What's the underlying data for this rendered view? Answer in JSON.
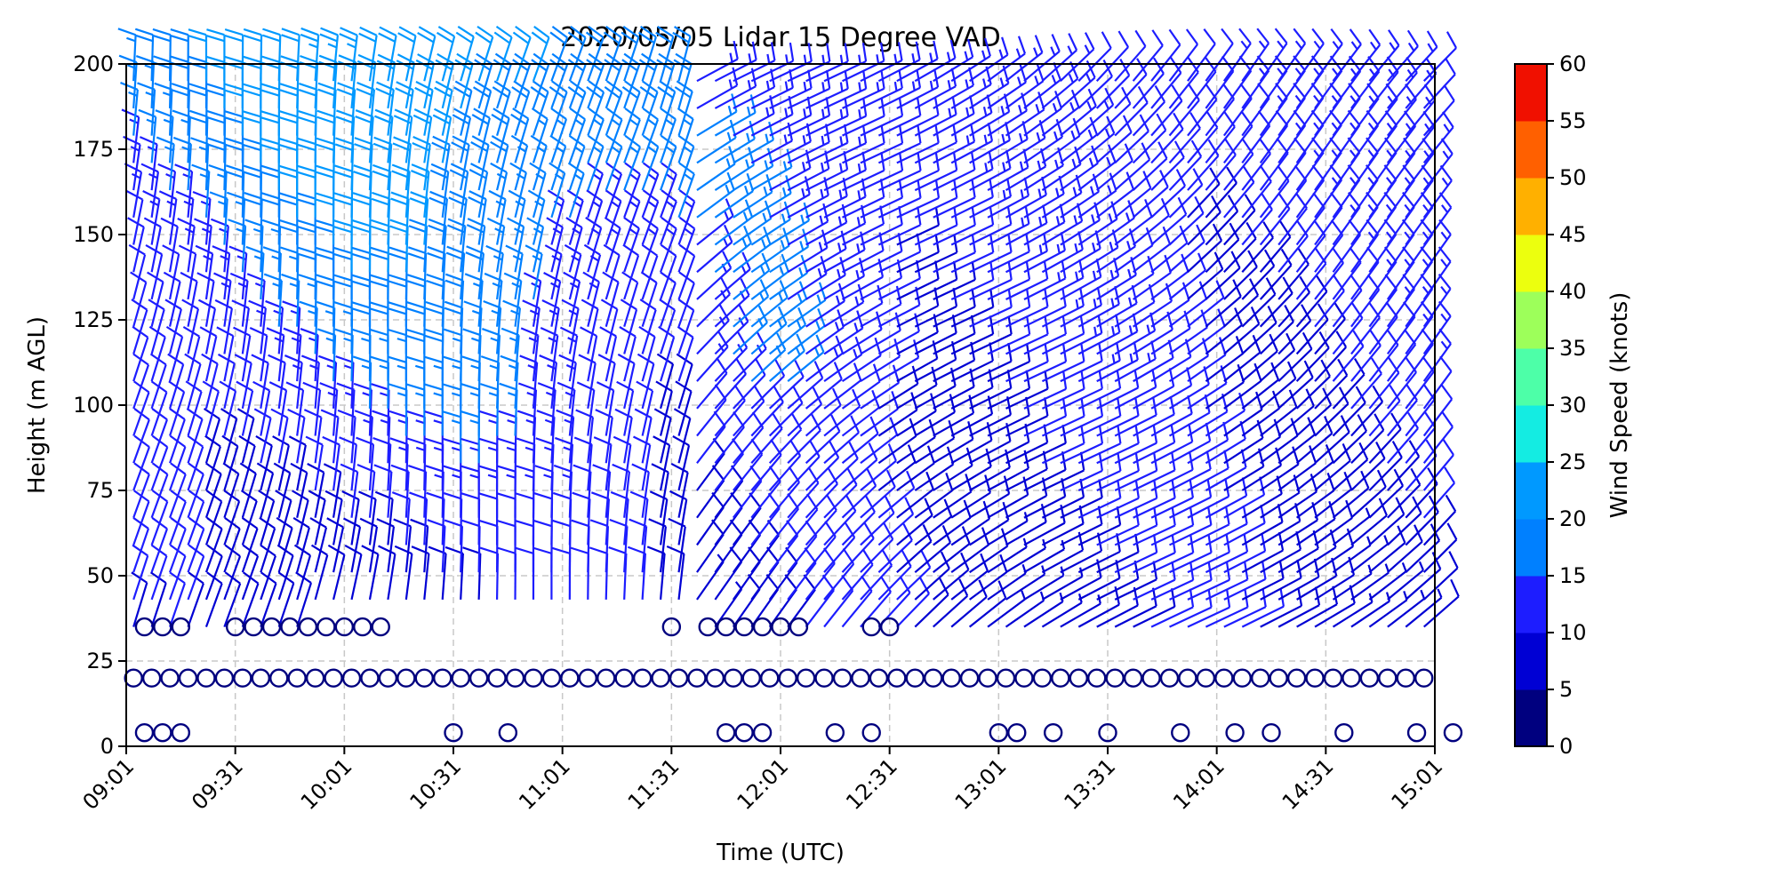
{
  "chart_data": {
    "type": "wind-barb",
    "title": "2020/05/05 Lidar 15 Degree VAD",
    "xlabel": "Time (UTC)",
    "ylabel": "Height (m AGL)",
    "xticks": [
      "09:01",
      "09:31",
      "10:01",
      "10:31",
      "11:01",
      "11:31",
      "12:01",
      "12:31",
      "13:01",
      "13:31",
      "14:01",
      "14:31",
      "15:01"
    ],
    "yticks": [
      0,
      25,
      50,
      75,
      100,
      125,
      150,
      175,
      200
    ],
    "xlim": [
      "09:01",
      "15:01"
    ],
    "ylim": [
      0,
      200
    ],
    "grid": true,
    "colorbar": {
      "label": "Wind Speed (knots)",
      "ticks": [
        0,
        5,
        10,
        15,
        20,
        25,
        30,
        35,
        40,
        45,
        50,
        55,
        60
      ],
      "colors": [
        "#00007f",
        "#0000d4",
        "#1d1dff",
        "#0080ff",
        "#0099ff",
        "#14ece2",
        "#4dffa8",
        "#9dff5a",
        "#ecff0e",
        "#ffb000",
        "#ff6000",
        "#f01000",
        "#7f0000"
      ]
    },
    "calm_rings_heights": [
      4,
      20,
      35
    ],
    "approximate_wind_field": [
      {
        "period": "09:01-10:20",
        "height_range": [
          40,
          200
        ],
        "speed_knots": [
          10,
          22
        ],
        "direction_deg": [
          180,
          200
        ]
      },
      {
        "period": "10:20-11:40",
        "height_range": [
          20,
          200
        ],
        "speed_knots": [
          6,
          20
        ],
        "direction_deg": [
          170,
          200
        ]
      },
      {
        "period": "11:40-15:01",
        "height_range": [
          25,
          200
        ],
        "speed_knots": [
          8,
          16
        ],
        "direction_deg": [
          220,
          250
        ]
      }
    ]
  }
}
